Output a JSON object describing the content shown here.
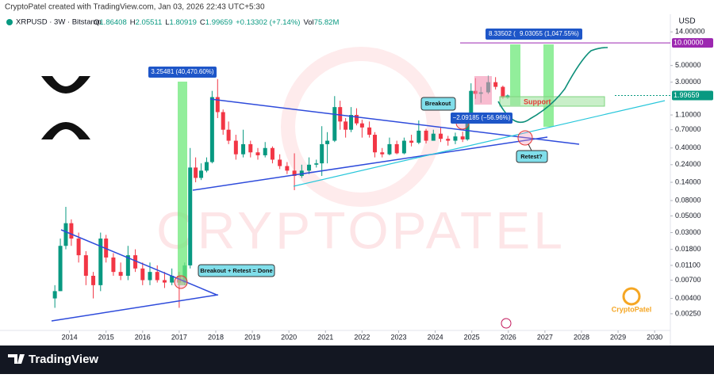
{
  "chart_data": {
    "type": "candlestick",
    "credit": "CryptoPatel created with TradingView.com, Jan 03, 2026 22:43 UTC+5:30",
    "symbol": "XRPUSD · 3W · Bitstamp",
    "ohlc": [
      {
        "key": "O",
        "value": 1.86408
      },
      {
        "key": "H",
        "value": 2.05511
      },
      {
        "key": "L",
        "value": 1.80919
      },
      {
        "key": "C",
        "value": 1.99659
      }
    ],
    "change": "+0.13302 (+7.14%)",
    "volume": {
      "key": "Vol",
      "value": "75.82M"
    },
    "currency": "USD",
    "log_scale": true,
    "up_color": "#089981",
    "down_color": "#f23645",
    "xlim": [
      2012.1,
      2030.43
    ],
    "ylim": [
      0.0015,
      24
    ],
    "xticks": [
      2014,
      2015,
      2016,
      2017,
      2018,
      2019,
      2020,
      2021,
      2022,
      2023,
      2024,
      2025,
      2026,
      2027,
      2028,
      2029,
      2030
    ],
    "yticks": [
      {
        "value": 14,
        "label": "14.00000"
      },
      {
        "value": 5,
        "label": "5.00000"
      },
      {
        "value": 3,
        "label": "3.00000"
      },
      {
        "value": 1.1,
        "label": "1.10000"
      },
      {
        "value": 0.7,
        "label": "0.70000"
      },
      {
        "value": 0.4,
        "label": "0.40000"
      },
      {
        "value": 0.24,
        "label": "0.24000"
      },
      {
        "value": 0.14,
        "label": "0.14000"
      },
      {
        "value": 0.08,
        "label": "0.08000"
      },
      {
        "value": 0.05,
        "label": "0.05000"
      },
      {
        "value": 0.03,
        "label": "0.03000"
      },
      {
        "value": 0.018,
        "label": "0.01800"
      },
      {
        "value": 0.011,
        "label": "0.01100"
      },
      {
        "value": 0.007,
        "label": "0.00700"
      },
      {
        "value": 0.004,
        "label": "0.00400"
      },
      {
        "value": 0.0025,
        "label": "0.00250"
      }
    ],
    "target_line": {
      "value": 10,
      "label": "10.00000",
      "color": "#9c27b0"
    },
    "price_line": {
      "value": 1.99659,
      "label": "1.99659",
      "color": "#089981"
    },
    "x": [
      2013.6,
      2013.75,
      2013.9,
      2014.05,
      2014.25,
      2014.45,
      2014.65,
      2014.85,
      2015.0,
      2015.2,
      2015.4,
      2015.6,
      2015.8,
      2016.0,
      2016.2,
      2016.4,
      2016.6,
      2016.8,
      2017.0,
      2017.15,
      2017.3,
      2017.45,
      2017.6,
      2017.75,
      2017.9,
      2018.05,
      2018.2,
      2018.35,
      2018.55,
      2018.75,
      2018.95,
      2019.15,
      2019.35,
      2019.55,
      2019.75,
      2019.95,
      2020.15,
      2020.35,
      2020.55,
      2020.75,
      2020.9,
      2021.05,
      2021.25,
      2021.4,
      2021.55,
      2021.7,
      2021.85,
      2022.0,
      2022.2,
      2022.35,
      2022.55,
      2022.75,
      2022.95,
      2023.15,
      2023.35,
      2023.55,
      2023.75,
      2023.95,
      2024.15,
      2024.35,
      2024.55,
      2024.75,
      2024.88,
      2024.98,
      2025.1,
      2025.25,
      2025.45,
      2025.65,
      2025.85,
      2025.98
    ],
    "open": [
      0.004,
      0.005,
      0.02,
      0.04,
      0.025,
      0.015,
      0.008,
      0.006,
      0.025,
      0.014,
      0.009,
      0.008,
      0.015,
      0.01,
      0.007,
      0.009,
      0.007,
      0.0065,
      0.008,
      0.0065,
      0.011,
      0.22,
      0.16,
      0.2,
      0.26,
      1.9,
      1.2,
      0.7,
      0.5,
      0.33,
      0.45,
      0.35,
      0.32,
      0.4,
      0.28,
      0.23,
      0.2,
      0.17,
      0.2,
      0.24,
      0.25,
      0.45,
      0.5,
      1.4,
      0.9,
      0.7,
      1.1,
      0.85,
      0.75,
      0.6,
      0.35,
      0.33,
      0.45,
      0.34,
      0.5,
      0.47,
      0.68,
      0.5,
      0.62,
      0.53,
      0.5,
      0.57,
      0.52,
      1.05,
      2.3,
      2.1,
      2.2,
      3.0,
      2.6,
      1.86408
    ],
    "high": [
      0.006,
      0.025,
      0.066,
      0.045,
      0.03,
      0.017,
      0.009,
      0.03,
      0.028,
      0.016,
      0.012,
      0.02,
      0.018,
      0.012,
      0.012,
      0.011,
      0.009,
      0.01,
      0.009,
      0.012,
      0.4,
      0.3,
      0.25,
      0.3,
      2.3,
      3.3,
      1.3,
      0.9,
      0.6,
      0.7,
      0.5,
      0.4,
      0.48,
      0.42,
      0.33,
      0.26,
      0.34,
      0.24,
      0.3,
      0.28,
      0.78,
      0.65,
      1.96,
      1.7,
      1.0,
      1.4,
      1.35,
      0.95,
      0.9,
      0.65,
      0.4,
      0.55,
      0.5,
      0.55,
      0.6,
      0.93,
      0.72,
      0.7,
      0.74,
      0.58,
      0.64,
      0.66,
      1.1,
      2.9,
      3.4,
      2.6,
      3.66,
      3.5,
      2.7,
      2.05511
    ],
    "low": [
      0.003,
      0.005,
      0.018,
      0.02,
      0.012,
      0.006,
      0.004,
      0.005,
      0.012,
      0.008,
      0.007,
      0.007,
      0.009,
      0.006,
      0.006,
      0.0065,
      0.0055,
      0.006,
      0.003,
      0.006,
      0.01,
      0.14,
      0.15,
      0.19,
      0.25,
      1.0,
      0.6,
      0.45,
      0.28,
      0.3,
      0.3,
      0.28,
      0.3,
      0.25,
      0.21,
      0.18,
      0.11,
      0.16,
      0.18,
      0.22,
      0.17,
      0.25,
      0.48,
      0.7,
      0.55,
      0.65,
      0.8,
      0.55,
      0.55,
      0.3,
      0.3,
      0.32,
      0.33,
      0.33,
      0.42,
      0.45,
      0.46,
      0.5,
      0.48,
      0.43,
      0.45,
      0.48,
      0.5,
      1.0,
      1.8,
      1.6,
      2.1,
      2.4,
      1.8,
      1.80919
    ],
    "close": [
      0.005,
      0.02,
      0.04,
      0.025,
      0.015,
      0.008,
      0.006,
      0.025,
      0.014,
      0.009,
      0.008,
      0.015,
      0.01,
      0.007,
      0.009,
      0.007,
      0.0065,
      0.008,
      0.0065,
      0.011,
      0.22,
      0.16,
      0.2,
      0.26,
      1.9,
      1.2,
      0.7,
      0.5,
      0.33,
      0.45,
      0.35,
      0.32,
      0.4,
      0.28,
      0.23,
      0.2,
      0.17,
      0.2,
      0.24,
      0.25,
      0.45,
      0.5,
      1.4,
      0.9,
      0.7,
      1.1,
      0.85,
      0.75,
      0.6,
      0.35,
      0.33,
      0.45,
      0.34,
      0.5,
      0.47,
      0.68,
      0.5,
      0.62,
      0.53,
      0.5,
      0.57,
      0.52,
      1.05,
      2.3,
      2.1,
      2.2,
      3.0,
      2.6,
      1.87,
      1.99659
    ],
    "annotations": {
      "rally_2017": "3.25481 (40,470.60%)",
      "retest_done": "Breakout + Retest = Done",
      "breakout": "Breakout",
      "drop": "−2.09185 (−56.96%)",
      "target_1": "8.33502 (",
      "target_2": "9.03055 (1,047.55%)",
      "support": "Support",
      "retest": "Retest?"
    },
    "watermark": "CRYPTOPATEL",
    "logo": "CryptoPatel",
    "brand": "TradingView"
  }
}
